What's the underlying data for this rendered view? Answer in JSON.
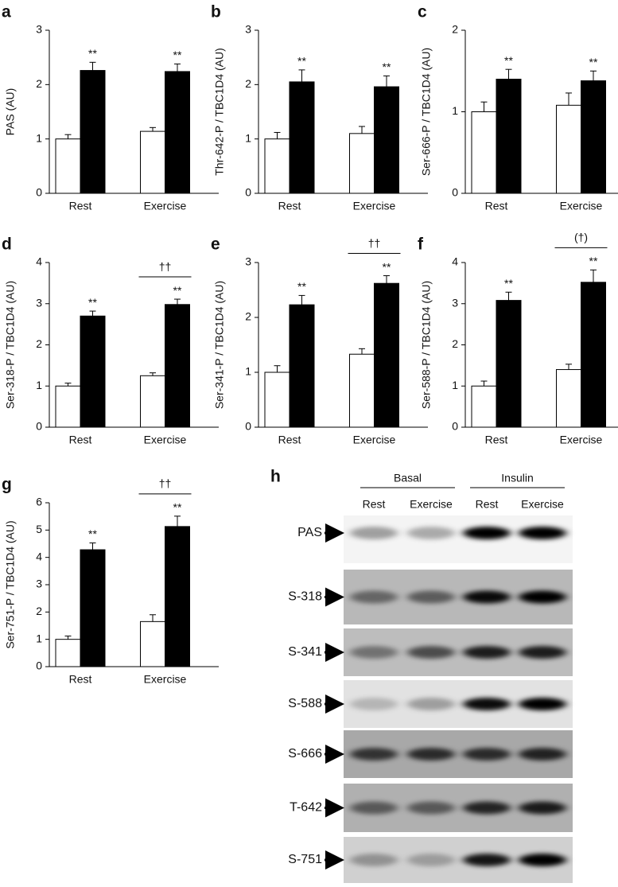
{
  "chart_data": [
    {
      "type": "bar",
      "panel": "a",
      "ylabel": "PAS (AU)",
      "categories": [
        "Rest",
        "Exercise"
      ],
      "ylim": [
        0,
        3
      ],
      "yticks": [
        0,
        1,
        2,
        3
      ],
      "series": [
        {
          "color": "#ffffff",
          "values": [
            1.0,
            1.14
          ],
          "errors": [
            0.08,
            0.07
          ]
        },
        {
          "color": "#000000",
          "values": [
            2.26,
            2.24
          ],
          "errors": [
            0.15,
            0.14
          ],
          "significance": [
            "**",
            "**"
          ]
        }
      ]
    },
    {
      "type": "bar",
      "panel": "b",
      "ylabel": "Thr-642-P / TBC1D4 (AU)",
      "categories": [
        "Rest",
        "Exercise"
      ],
      "ylim": [
        0,
        3
      ],
      "yticks": [
        0,
        1,
        2,
        3
      ],
      "series": [
        {
          "color": "#ffffff",
          "values": [
            1.0,
            1.1
          ],
          "errors": [
            0.12,
            0.13
          ]
        },
        {
          "color": "#000000",
          "values": [
            2.05,
            1.96
          ],
          "errors": [
            0.22,
            0.2
          ],
          "significance": [
            "**",
            "**"
          ]
        }
      ]
    },
    {
      "type": "bar",
      "panel": "c",
      "ylabel": "Ser-666-P / TBC1D4 (AU)",
      "categories": [
        "Rest",
        "Exercise"
      ],
      "ylim": [
        0,
        2
      ],
      "yticks": [
        0,
        1,
        2
      ],
      "series": [
        {
          "color": "#ffffff",
          "values": [
            1.0,
            1.08
          ],
          "errors": [
            0.12,
            0.15
          ]
        },
        {
          "color": "#000000",
          "values": [
            1.4,
            1.38
          ],
          "errors": [
            0.12,
            0.12
          ],
          "significance": [
            "**",
            "**"
          ]
        }
      ]
    },
    {
      "type": "bar",
      "panel": "d",
      "ylabel": "Ser-318-P / TBC1D4 (AU)",
      "categories": [
        "Rest",
        "Exercise"
      ],
      "ylim": [
        0,
        4
      ],
      "yticks": [
        0,
        1,
        2,
        3,
        4
      ],
      "bracket": "††",
      "series": [
        {
          "color": "#ffffff",
          "values": [
            1.0,
            1.25
          ],
          "errors": [
            0.07,
            0.07
          ]
        },
        {
          "color": "#000000",
          "values": [
            2.7,
            2.98
          ],
          "errors": [
            0.12,
            0.13
          ],
          "significance": [
            "**",
            "**"
          ]
        }
      ]
    },
    {
      "type": "bar",
      "panel": "e",
      "ylabel": "Ser-341-P / TBC1D4 (AU)",
      "categories": [
        "Rest",
        "Exercise"
      ],
      "ylim": [
        0,
        3
      ],
      "yticks": [
        0,
        1,
        2,
        3
      ],
      "bracket": "††",
      "series": [
        {
          "color": "#ffffff",
          "values": [
            1.0,
            1.33
          ],
          "errors": [
            0.12,
            0.1
          ]
        },
        {
          "color": "#000000",
          "values": [
            2.23,
            2.62
          ],
          "errors": [
            0.17,
            0.14
          ],
          "significance": [
            "**",
            "**"
          ]
        }
      ]
    },
    {
      "type": "bar",
      "panel": "f",
      "ylabel": "Ser-588-P / TBC1D4 (AU)",
      "categories": [
        "Rest",
        "Exercise"
      ],
      "ylim": [
        0,
        4
      ],
      "yticks": [
        0,
        1,
        2,
        3,
        4
      ],
      "bracket": "(†)",
      "series": [
        {
          "color": "#ffffff",
          "values": [
            1.0,
            1.4
          ],
          "errors": [
            0.12,
            0.13
          ]
        },
        {
          "color": "#000000",
          "values": [
            3.08,
            3.52
          ],
          "errors": [
            0.2,
            0.3
          ],
          "significance": [
            "**",
            "**"
          ]
        }
      ]
    },
    {
      "type": "bar",
      "panel": "g",
      "ylabel": "Ser-751-P / TBC1D4 (AU)",
      "categories": [
        "Rest",
        "Exercise"
      ],
      "ylim": [
        0,
        6
      ],
      "yticks": [
        0,
        1,
        2,
        3,
        4,
        5,
        6
      ],
      "bracket": "††",
      "series": [
        {
          "color": "#ffffff",
          "values": [
            1.0,
            1.65
          ],
          "errors": [
            0.12,
            0.25
          ]
        },
        {
          "color": "#000000",
          "values": [
            4.28,
            5.13
          ],
          "errors": [
            0.25,
            0.38
          ],
          "significance": [
            "**",
            "**"
          ]
        }
      ]
    }
  ],
  "blot": {
    "panel": "h",
    "groups": [
      "Basal",
      "Insulin"
    ],
    "lanes": [
      "Rest",
      "Exercise",
      "Rest",
      "Exercise"
    ],
    "rows": [
      "PAS",
      "S-318",
      "S-341",
      "S-588",
      "S-666",
      "T-642",
      "S-751"
    ]
  }
}
